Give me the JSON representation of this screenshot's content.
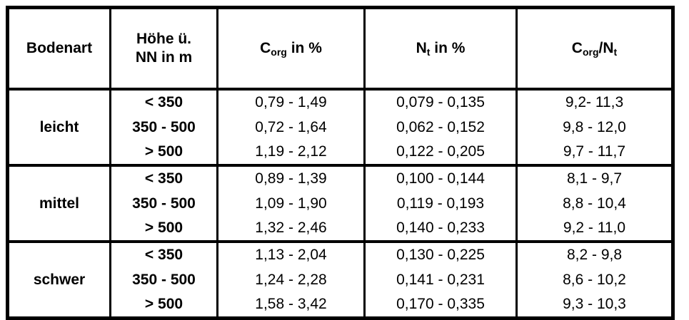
{
  "table": {
    "headers": {
      "bodenart": "Bodenart",
      "hoehe_line1": "Höhe ü.",
      "hoehe_line2": "NN in m",
      "corg": {
        "base": "C",
        "sub": "org",
        "rest": " in %"
      },
      "nt": {
        "base": "N",
        "sub": "t",
        "rest": " in %"
      },
      "ratio": {
        "base1": "C",
        "sub1": "org",
        "base2": "/N",
        "sub2": "t"
      }
    },
    "groups": [
      {
        "bodenart": "leicht",
        "rows": [
          {
            "hoehe": "< 350",
            "corg": "0,79 - 1,49",
            "nt": "0,079 - 0,135",
            "ratio": "9,2- 11,3"
          },
          {
            "hoehe": "350 - 500",
            "corg": "0,72 - 1,64",
            "nt": "0,062 - 0,152",
            "ratio": "9,8 - 12,0"
          },
          {
            "hoehe": "> 500",
            "corg": "1,19 - 2,12",
            "nt": "0,122 - 0,205",
            "ratio": "9,7 - 11,7"
          }
        ]
      },
      {
        "bodenart": "mittel",
        "rows": [
          {
            "hoehe": "< 350",
            "corg": "0,89 - 1,39",
            "nt": "0,100 - 0,144",
            "ratio": "8,1 - 9,7"
          },
          {
            "hoehe": "350 - 500",
            "corg": "1,09 - 1,90",
            "nt": "0,119 - 0,193",
            "ratio": "8,8 - 10,4"
          },
          {
            "hoehe": "> 500",
            "corg": "1,32 - 2,46",
            "nt": "0,140 - 0,233",
            "ratio": "9,2 - 11,0"
          }
        ]
      },
      {
        "bodenart": "schwer",
        "rows": [
          {
            "hoehe": "< 350",
            "corg": "1,13 - 2,04",
            "nt": "0,130 - 0,225",
            "ratio": "8,2 - 9,8"
          },
          {
            "hoehe": "350 - 500",
            "corg": "1,24 - 2,28",
            "nt": "0,141 - 0,231",
            "ratio": "8,6 - 10,2"
          },
          {
            "hoehe": "> 500",
            "corg": "1,58 - 3,42",
            "nt": "0,170 - 0,335",
            "ratio": "9,3 - 10,3"
          }
        ]
      }
    ]
  }
}
